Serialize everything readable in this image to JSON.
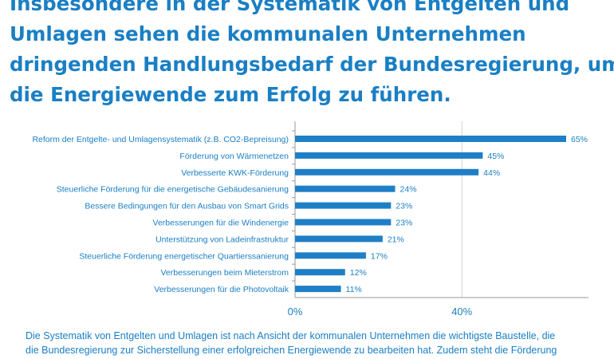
{
  "headline": [
    "Insbesondere in der Systematik von Entgelten und",
    "Umlagen sehen die kommunalen Unternehmen",
    "dringenden Handlungsbedarf der Bundesregierung, um",
    "die Energiewende zum Erfolg zu führen."
  ],
  "caption": [
    "Die Systematik von Entgelten und  Umlagen ist nach Ansicht der kommunalen Unternehmen die wichtigste Baustelle, die",
    "die Bundesregierung zur Sicherstellung einer erfolgreichen Energiewende zu bearbeiten hat. Zudem steht die Förderung"
  ],
  "colors": {
    "bar": "#1f7fc6",
    "text": "#1a7fc4",
    "grid": "#d0d0d0",
    "axis": "#9a9a9a"
  },
  "chart_data": {
    "type": "bar",
    "orientation": "horizontal",
    "categories": [
      "Reform der Entgelte- und Umlagensystematik (z.B. CO2-Bepreisung)",
      "Förderung von Wärmenetzen",
      "Verbesserte KWK-Förderung",
      "Steuerliche Förderung für die energetische Gebäudesanierung",
      "Bessere Bedingungen für den Ausbau von Smart Grids",
      "Verbesserungen für die Windenergie",
      "Unterstützung von Ladeinfrastruktur",
      "Steuerliche Förderung energetischer Quartierssanierung",
      "Verbesserungen beim Mieterstrom",
      "Verbesserungen für die Photovoltaik"
    ],
    "values": [
      65,
      45,
      44,
      24,
      23,
      23,
      21,
      17,
      12,
      11
    ],
    "value_labels": [
      "65%",
      "45%",
      "44%",
      "24%",
      "23%",
      "23%",
      "21%",
      "17%",
      "12%",
      "11%"
    ],
    "xlim": [
      0,
      65
    ],
    "xticks": [
      0,
      40
    ],
    "xtick_labels": [
      "0%",
      "40%"
    ],
    "grid": true
  }
}
